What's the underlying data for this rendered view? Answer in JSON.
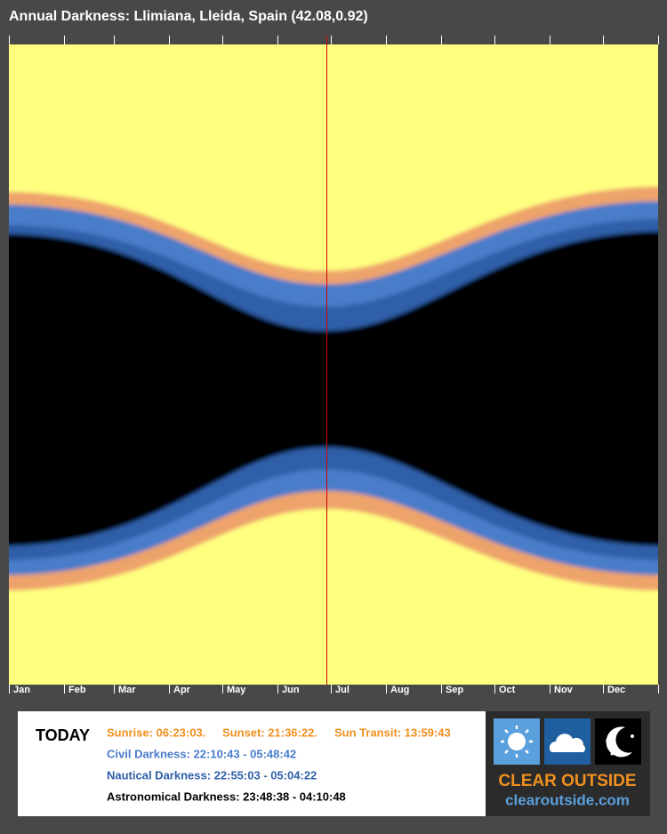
{
  "header": {
    "title": "Annual Darkness: Llimiana, Lleida, Spain (42.08,0.92)"
  },
  "months": [
    "Jan",
    "Feb",
    "Mar",
    "Apr",
    "May",
    "Jun",
    "Jul",
    "Aug",
    "Sep",
    "Oct",
    "Nov",
    "Dec"
  ],
  "today": {
    "label": "TODAY",
    "sunrise": "Sunrise: 06:23:03.",
    "sunset": "Sunset: 21:36:22.",
    "transit": "Sun Transit: 13:59:43",
    "civil": "Civil Darkness: 22:10:43 - 05:48:42",
    "nautical": "Nautical Darkness: 22:55:03 - 05:04:22",
    "astronomical": "Astronomical Darkness: 23:48:38 - 04:10:48"
  },
  "logo": {
    "brand": "CLEAR OUTSIDE",
    "url": "clearoutside.com"
  }
}
